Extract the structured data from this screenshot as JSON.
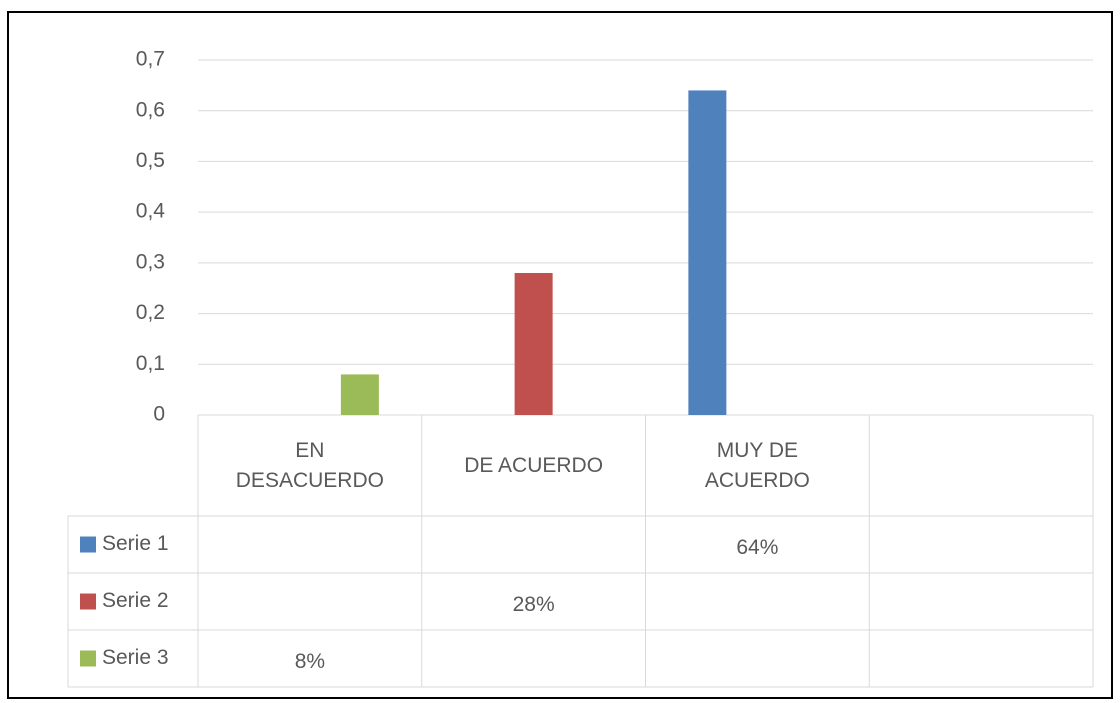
{
  "chart_data": {
    "type": "bar",
    "categories": [
      "EN DESACUERDO",
      "DE ACUERDO",
      "MUY DE ACUERDO",
      null
    ],
    "series": [
      {
        "name": "Serie 1",
        "color": "#4f81bd",
        "values": [
          null,
          null,
          0.64,
          null
        ],
        "value_labels": [
          null,
          null,
          "64%",
          null
        ]
      },
      {
        "name": "Serie 2",
        "color": "#c0504d",
        "values": [
          null,
          0.28,
          null,
          null
        ],
        "value_labels": [
          null,
          "28%",
          null,
          null
        ]
      },
      {
        "name": "Serie 3",
        "color": "#9bbb59",
        "values": [
          0.08,
          null,
          null,
          null
        ],
        "value_labels": [
          "8%",
          null,
          null,
          null
        ]
      }
    ],
    "ylim": [
      0,
      0.7
    ],
    "yticks": [
      0,
      {
        "value": 0.1,
        "label": "0,1"
      },
      {
        "value": 0.2,
        "label": "0,2"
      },
      {
        "value": 0.3,
        "label": "0,3"
      },
      {
        "value": 0.4,
        "label": "0,4"
      },
      {
        "value": 0.5,
        "label": "0,5"
      },
      {
        "value": 0.6,
        "label": "0,6"
      },
      {
        "value": 0.7,
        "label": "0,7"
      }
    ],
    "grid": true
  }
}
